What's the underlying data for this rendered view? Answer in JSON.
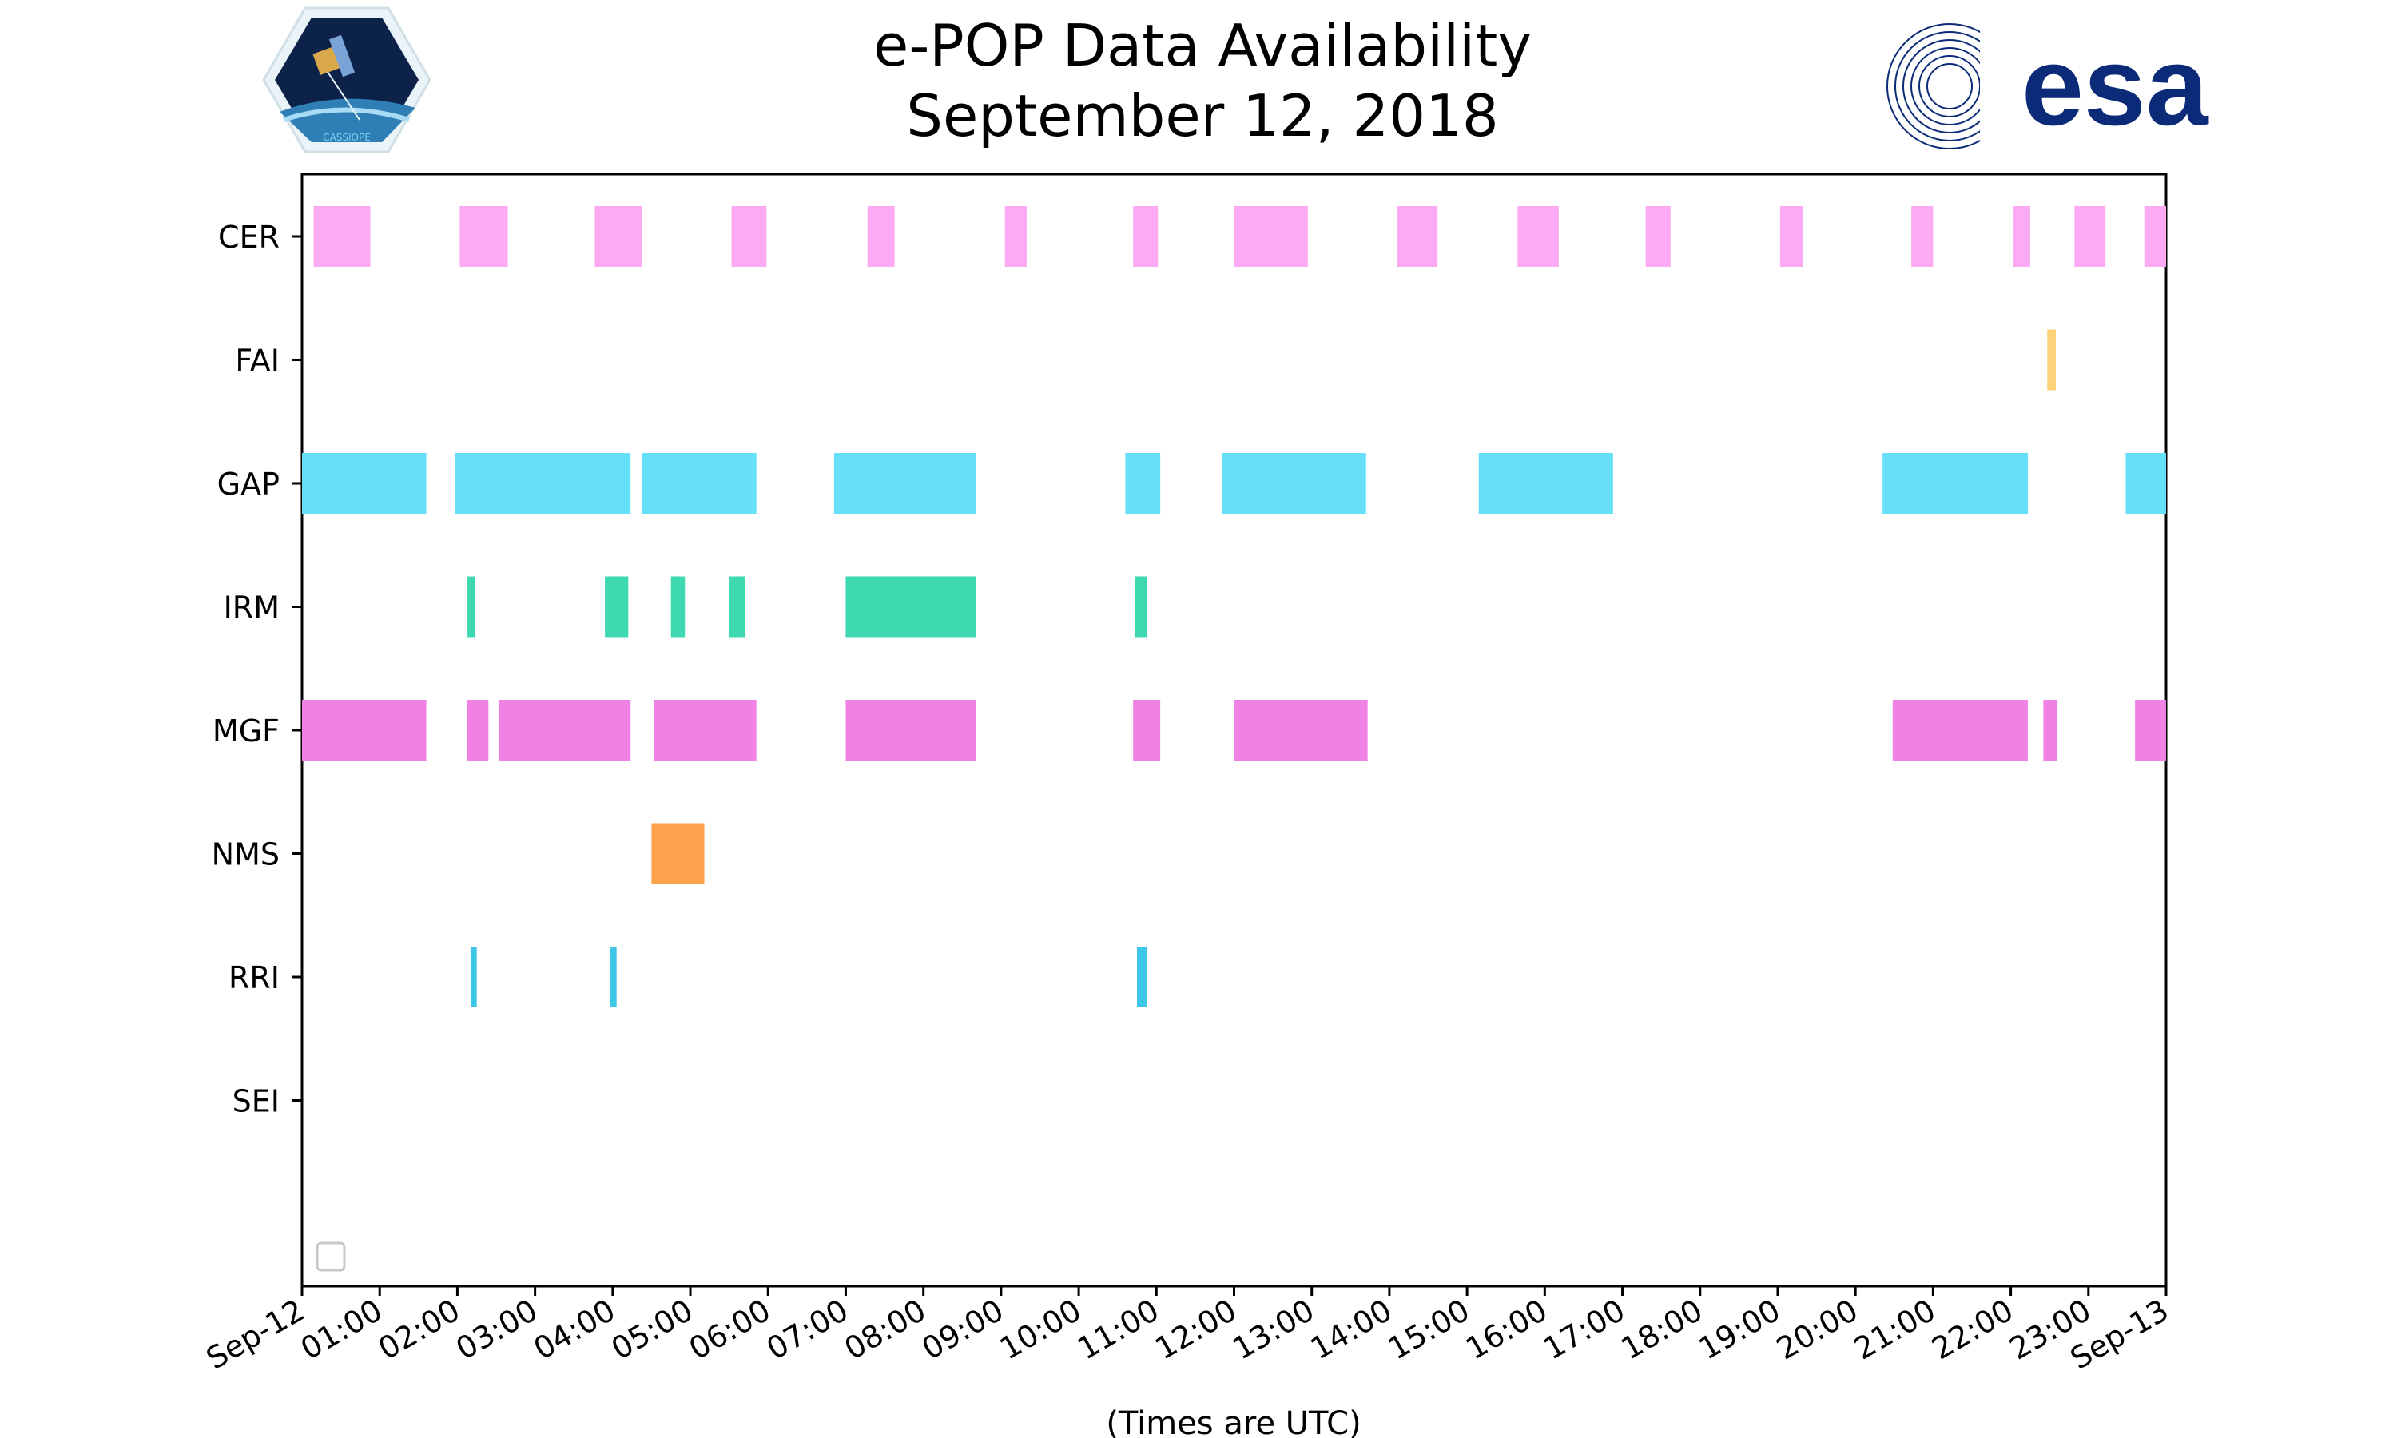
{
  "chart_data": {
    "type": "timeline",
    "title": "e-POP Data Availability",
    "subtitle": "September 12, 2018",
    "xlabel": "(Times are UTC)",
    "x_range_hours": [
      0,
      24
    ],
    "x_tick_labels": [
      "Sep-12",
      "01:00",
      "02:00",
      "03:00",
      "04:00",
      "05:00",
      "06:00",
      "07:00",
      "08:00",
      "09:00",
      "10:00",
      "11:00",
      "12:00",
      "13:00",
      "14:00",
      "15:00",
      "16:00",
      "17:00",
      "18:00",
      "19:00",
      "20:00",
      "21:00",
      "22:00",
      "23:00",
      "Sep-13"
    ],
    "instruments": [
      {
        "name": "CER",
        "color": "#fcaaf4",
        "intervals": [
          [
            0.15,
            0.88
          ],
          [
            2.03,
            2.65
          ],
          [
            3.77,
            4.38
          ],
          [
            5.53,
            5.98
          ],
          [
            7.28,
            7.63
          ],
          [
            9.05,
            9.33
          ],
          [
            10.7,
            11.02
          ],
          [
            12.0,
            12.95
          ],
          [
            14.1,
            14.62
          ],
          [
            15.65,
            16.18
          ],
          [
            17.3,
            17.62
          ],
          [
            19.03,
            19.33
          ],
          [
            20.72,
            21.0
          ],
          [
            22.03,
            22.25
          ],
          [
            22.82,
            23.22
          ],
          [
            23.72,
            24.0
          ]
        ]
      },
      {
        "name": "FAI",
        "color": "#fbd27a",
        "intervals": [
          [
            22.47,
            22.58
          ]
        ]
      },
      {
        "name": "GAP",
        "color": "#66e0f8",
        "intervals": [
          [
            0.0,
            1.6
          ],
          [
            1.97,
            4.23
          ],
          [
            4.38,
            5.85
          ],
          [
            6.85,
            8.68
          ],
          [
            10.6,
            11.05
          ],
          [
            11.85,
            13.7
          ],
          [
            15.15,
            16.88
          ],
          [
            20.35,
            22.22
          ],
          [
            23.48,
            24.0
          ]
        ]
      },
      {
        "name": "IRM",
        "color": "#3ed9b0",
        "intervals": [
          [
            2.13,
            2.23
          ],
          [
            3.9,
            4.2
          ],
          [
            4.75,
            4.93
          ],
          [
            5.5,
            5.7
          ],
          [
            7.0,
            8.68
          ],
          [
            10.72,
            10.88
          ]
        ]
      },
      {
        "name": "MGF",
        "color": "#f082e6",
        "intervals": [
          [
            0.0,
            1.6
          ],
          [
            2.12,
            2.4
          ],
          [
            2.53,
            4.23
          ],
          [
            4.53,
            5.85
          ],
          [
            7.0,
            8.68
          ],
          [
            10.7,
            11.05
          ],
          [
            12.0,
            13.72
          ],
          [
            20.48,
            22.22
          ],
          [
            22.42,
            22.6
          ],
          [
            23.6,
            24.0
          ]
        ]
      },
      {
        "name": "NMS",
        "color": "#fca24c",
        "intervals": [
          [
            4.5,
            5.18
          ]
        ]
      },
      {
        "name": "RRI",
        "color": "#3ec6e6",
        "intervals": [
          [
            2.17,
            2.25
          ],
          [
            3.97,
            4.05
          ],
          [
            10.75,
            10.88
          ]
        ]
      },
      {
        "name": "SEI",
        "color": "#cccccc",
        "intervals": []
      }
    ]
  },
  "logos": {
    "left": {
      "text": "CASSIOPE"
    },
    "right": {
      "text": "esa"
    }
  },
  "colors": {
    "frame": "#000000",
    "esa_blue": "#0b2a78"
  }
}
